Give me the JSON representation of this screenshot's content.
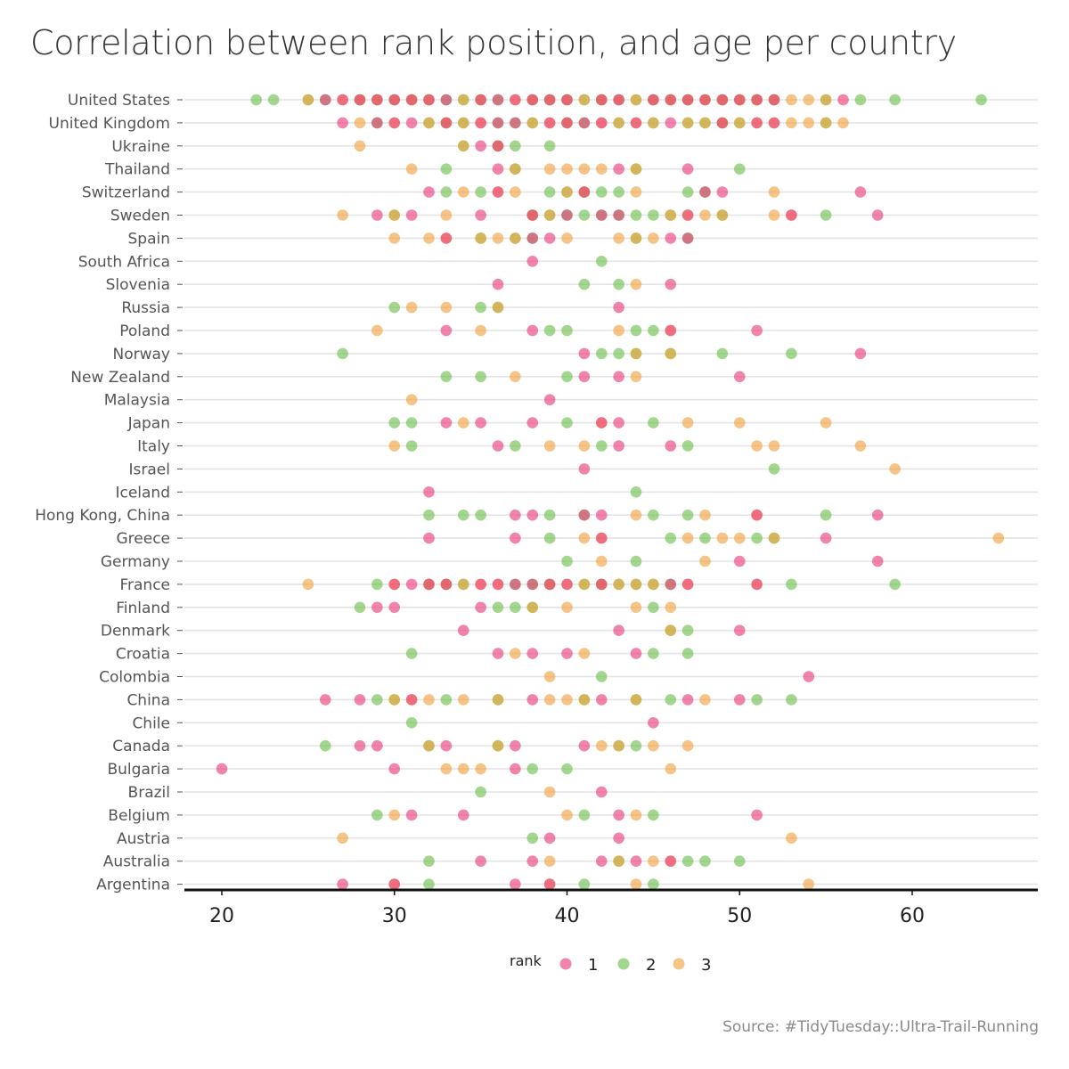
{
  "title": "Correlation between rank position, and age per country",
  "source": "Source: #TidyTuesday::Ultra-Trail-Running",
  "legend": {
    "title": "rank",
    "items": [
      {
        "label": "1",
        "color": "#e8387a"
      },
      {
        "label": "2",
        "color": "#6abf4b"
      },
      {
        "label": "3",
        "color": "#f0a03c"
      }
    ]
  },
  "chart_data": {
    "type": "scatter",
    "title": "Correlation between rank position, and age per country",
    "xlabel": "",
    "ylabel": "",
    "x_ticks": [
      "20",
      "30",
      "40",
      "50",
      "60"
    ],
    "xlim": [
      18,
      67
    ],
    "grid": "horizontal",
    "legend_position": "bottom",
    "series": [
      {
        "name": "1",
        "color": "#e8387a"
      },
      {
        "name": "2",
        "color": "#6abf4b"
      },
      {
        "name": "3",
        "color": "#f0a03c"
      }
    ],
    "categories": [
      "United States",
      "United Kingdom",
      "Ukraine",
      "Thailand",
      "Switzerland",
      "Sweden",
      "Spain",
      "South Africa",
      "Slovenia",
      "Russia",
      "Poland",
      "Norway",
      "New Zealand",
      "Malaysia",
      "Japan",
      "Italy",
      "Israel",
      "Iceland",
      "Hong Kong, China",
      "Greece",
      "Germany",
      "France",
      "Finland",
      "Denmark",
      "Croatia",
      "Colombia",
      "China",
      "Chile",
      "Canada",
      "Bulgaria",
      "Brazil",
      "Belgium",
      "Austria",
      "Australia",
      "Argentina"
    ],
    "rows": [
      {
        "country": "United States",
        "r1": [
          26,
          27,
          28,
          29,
          30,
          31,
          32,
          33,
          35,
          36,
          37,
          38,
          39,
          40,
          42,
          43,
          45,
          46,
          47,
          48,
          49,
          50,
          51,
          52,
          56
        ],
        "r2": [
          22,
          23,
          25,
          26,
          28,
          29,
          30,
          31,
          32,
          33,
          34,
          35,
          36,
          38,
          39,
          40,
          41,
          42,
          43,
          44,
          45,
          46,
          47,
          48,
          49,
          50,
          51,
          52,
          55,
          57,
          59,
          64
        ],
        "r3": [
          25,
          27,
          28,
          29,
          30,
          31,
          32,
          34,
          35,
          37,
          38,
          39,
          40,
          41,
          42,
          43,
          44,
          45,
          46,
          47,
          48,
          49,
          50,
          51,
          52,
          53,
          54,
          55
        ]
      },
      {
        "country": "United Kingdom",
        "r1": [
          27,
          29,
          30,
          31,
          33,
          35,
          36,
          37,
          39,
          40,
          41,
          42,
          44,
          46,
          49,
          51,
          52
        ],
        "r2": [
          29,
          32,
          33,
          34,
          36,
          37,
          38,
          40,
          41,
          43,
          45,
          47,
          48,
          49,
          50,
          55
        ],
        "r3": [
          28,
          30,
          32,
          33,
          34,
          35,
          38,
          39,
          40,
          42,
          43,
          44,
          45,
          47,
          48,
          49,
          50,
          51,
          52,
          53,
          54,
          55,
          56
        ]
      },
      {
        "country": "Ukraine",
        "r1": [
          35,
          36
        ],
        "r2": [
          34,
          36,
          37,
          39
        ],
        "r3": [
          28,
          34,
          36
        ]
      },
      {
        "country": "Thailand",
        "r1": [
          36,
          43,
          47
        ],
        "r2": [
          33,
          37,
          44,
          50
        ],
        "r3": [
          31,
          37,
          39,
          40,
          41,
          42,
          44
        ]
      },
      {
        "country": "Switzerland",
        "r1": [
          32,
          36,
          41,
          48,
          49,
          57
        ],
        "r2": [
          33,
          35,
          39,
          40,
          41,
          42,
          43,
          47,
          48
        ],
        "r3": [
          34,
          36,
          37,
          40,
          41,
          44,
          52
        ]
      },
      {
        "country": "Sweden",
        "r1": [
          29,
          31,
          35,
          38,
          40,
          42,
          43,
          47,
          53,
          58
        ],
        "r2": [
          30,
          38,
          39,
          40,
          41,
          42,
          43,
          44,
          45,
          46,
          49,
          55
        ],
        "r3": [
          27,
          30,
          33,
          38,
          39,
          46,
          47,
          48,
          49,
          52,
          53
        ]
      },
      {
        "country": "Spain",
        "r1": [
          33,
          38,
          39,
          46,
          47
        ],
        "r2": [
          35,
          37,
          38,
          44,
          47
        ],
        "r3": [
          30,
          32,
          33,
          35,
          36,
          37,
          40,
          43,
          44,
          45
        ]
      },
      {
        "country": "South Africa",
        "r1": [
          38
        ],
        "r2": [
          42
        ],
        "r3": []
      },
      {
        "country": "Slovenia",
        "r1": [
          36,
          46
        ],
        "r2": [
          41,
          43
        ],
        "r3": [
          44
        ]
      },
      {
        "country": "Russia",
        "r1": [
          43
        ],
        "r2": [
          30,
          35,
          36
        ],
        "r3": [
          31,
          33,
          36
        ]
      },
      {
        "country": "Poland",
        "r1": [
          33,
          38,
          46,
          51
        ],
        "r2": [
          39,
          40,
          44,
          45
        ],
        "r3": [
          29,
          35,
          43,
          46
        ]
      },
      {
        "country": "Norway",
        "r1": [
          41,
          57
        ],
        "r2": [
          27,
          42,
          43,
          44,
          46,
          49,
          53
        ],
        "r3": [
          44,
          46
        ]
      },
      {
        "country": "New Zealand",
        "r1": [
          41,
          43,
          50
        ],
        "r2": [
          33,
          35,
          40
        ],
        "r3": [
          37,
          44
        ]
      },
      {
        "country": "Malaysia",
        "r1": [
          39
        ],
        "r2": [],
        "r3": [
          31
        ]
      },
      {
        "country": "Japan",
        "r1": [
          33,
          35,
          38,
          42,
          43
        ],
        "r2": [
          30,
          31,
          40,
          45
        ],
        "r3": [
          34,
          42,
          47,
          50,
          55
        ]
      },
      {
        "country": "Italy",
        "r1": [
          36,
          43,
          46
        ],
        "r2": [
          31,
          37,
          42,
          47
        ],
        "r3": [
          30,
          39,
          41,
          51,
          52,
          57
        ]
      },
      {
        "country": "Israel",
        "r1": [
          41
        ],
        "r2": [
          52
        ],
        "r3": [
          59
        ]
      },
      {
        "country": "Iceland",
        "r1": [
          32
        ],
        "r2": [
          44
        ],
        "r3": []
      },
      {
        "country": "Hong Kong, China",
        "r1": [
          37,
          38,
          41,
          42,
          51,
          58
        ],
        "r2": [
          32,
          34,
          35,
          39,
          41,
          45,
          47,
          55
        ],
        "r3": [
          44,
          48,
          51
        ]
      },
      {
        "country": "Greece",
        "r1": [
          32,
          37,
          42,
          55
        ],
        "r2": [
          39,
          46,
          48,
          51,
          52
        ],
        "r3": [
          41,
          42,
          47,
          49,
          50,
          52,
          65
        ]
      },
      {
        "country": "Germany",
        "r1": [
          50,
          58
        ],
        "r2": [
          40,
          44
        ],
        "r3": [
          42,
          48
        ]
      },
      {
        "country": "France",
        "r1": [
          30,
          31,
          32,
          33,
          35,
          36,
          37,
          38,
          39,
          40,
          42,
          46,
          47,
          51
        ],
        "r2": [
          29,
          32,
          33,
          34,
          37,
          38,
          39,
          41,
          42,
          43,
          44,
          45,
          46,
          53,
          59
        ],
        "r3": [
          25,
          30,
          32,
          33,
          34,
          35,
          36,
          39,
          40,
          41,
          42,
          43,
          44,
          45,
          47,
          51
        ]
      },
      {
        "country": "Finland",
        "r1": [
          29,
          30,
          35
        ],
        "r2": [
          28,
          36,
          37,
          38,
          45
        ],
        "r3": [
          38,
          40,
          44,
          46
        ]
      },
      {
        "country": "Denmark",
        "r1": [
          34,
          43,
          50
        ],
        "r2": [
          46,
          47
        ],
        "r3": [
          46
        ]
      },
      {
        "country": "Croatia",
        "r1": [
          36,
          38,
          40,
          44
        ],
        "r2": [
          31,
          45,
          47
        ],
        "r3": [
          37,
          41
        ]
      },
      {
        "country": "Colombia",
        "r1": [
          54
        ],
        "r2": [
          42
        ],
        "r3": [
          39
        ]
      },
      {
        "country": "China",
        "r1": [
          26,
          28,
          31,
          38,
          42,
          47,
          50
        ],
        "r2": [
          29,
          30,
          33,
          36,
          41,
          44,
          46,
          51,
          53
        ],
        "r3": [
          30,
          31,
          32,
          34,
          36,
          39,
          40,
          41,
          44,
          48
        ]
      },
      {
        "country": "Chile",
        "r1": [
          45
        ],
        "r2": [
          31
        ],
        "r3": []
      },
      {
        "country": "Canada",
        "r1": [
          28,
          29,
          33,
          37,
          41
        ],
        "r2": [
          26,
          32,
          36,
          43,
          44
        ],
        "r3": [
          32,
          36,
          42,
          43,
          45,
          47
        ]
      },
      {
        "country": "Bulgaria",
        "r1": [
          20,
          30,
          37
        ],
        "r2": [
          38,
          40
        ],
        "r3": [
          33,
          34,
          35,
          46
        ]
      },
      {
        "country": "Brazil",
        "r1": [
          42
        ],
        "r2": [
          35
        ],
        "r3": [
          39
        ]
      },
      {
        "country": "Belgium",
        "r1": [
          31,
          34,
          43,
          51
        ],
        "r2": [
          29,
          41,
          45
        ],
        "r3": [
          30,
          40,
          44
        ]
      },
      {
        "country": "Austria",
        "r1": [
          39,
          43
        ],
        "r2": [
          38
        ],
        "r3": [
          27,
          53
        ]
      },
      {
        "country": "Australia",
        "r1": [
          35,
          38,
          42,
          44,
          46
        ],
        "r2": [
          32,
          43,
          47,
          48,
          50
        ],
        "r3": [
          39,
          43,
          45,
          46
        ]
      },
      {
        "country": "Argentina",
        "r1": [
          27,
          30,
          37,
          39
        ],
        "r2": [
          32,
          41,
          45
        ],
        "r3": [
          30,
          39,
          44,
          54
        ]
      }
    ]
  }
}
